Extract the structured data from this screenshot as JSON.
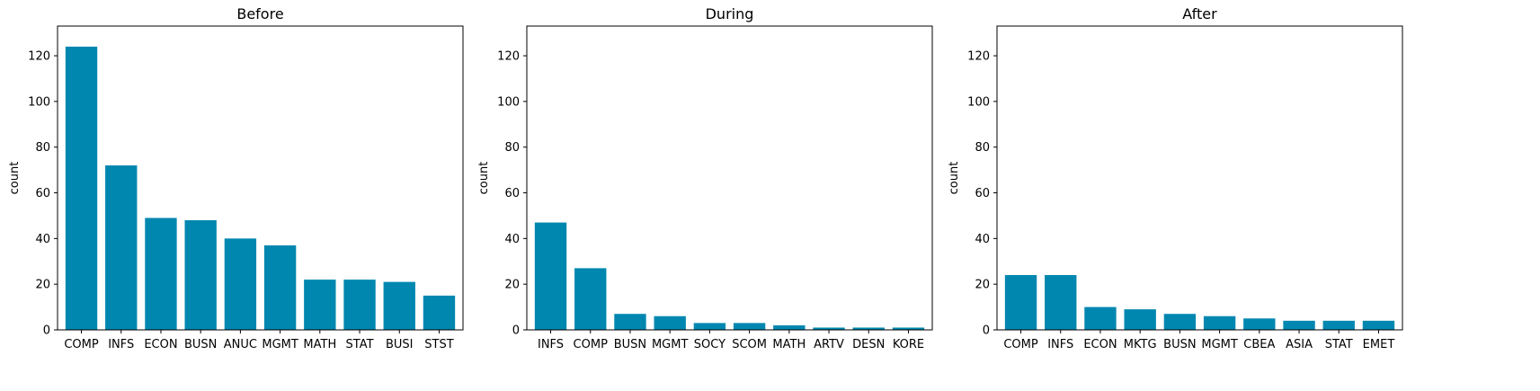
{
  "chart_data": [
    {
      "type": "bar",
      "title": "Before",
      "xlabel": "",
      "ylabel": "count",
      "ylim": [
        0,
        133
      ],
      "yticks": [
        0,
        20,
        40,
        60,
        80,
        100,
        120
      ],
      "categories": [
        "COMP",
        "INFS",
        "ECON",
        "BUSN",
        "ANUC",
        "MGMT",
        "MATH",
        "STAT",
        "BUSI",
        "STST"
      ],
      "values": [
        124,
        72,
        49,
        48,
        40,
        37,
        22,
        22,
        21,
        15
      ],
      "grid": false,
      "color": "#0087b0"
    },
    {
      "type": "bar",
      "title": "During",
      "xlabel": "",
      "ylabel": "count",
      "ylim": [
        0,
        133
      ],
      "yticks": [
        0,
        20,
        40,
        60,
        80,
        100,
        120
      ],
      "categories": [
        "INFS",
        "COMP",
        "BUSN",
        "MGMT",
        "SOCY",
        "SCOM",
        "MATH",
        "ARTV",
        "DESN",
        "KORE"
      ],
      "values": [
        47,
        27,
        7,
        6,
        3,
        3,
        2,
        1,
        1,
        1
      ],
      "grid": false,
      "color": "#0087b0"
    },
    {
      "type": "bar",
      "title": "After",
      "xlabel": "",
      "ylabel": "count",
      "ylim": [
        0,
        133
      ],
      "yticks": [
        0,
        20,
        40,
        60,
        80,
        100,
        120
      ],
      "categories": [
        "COMP",
        "INFS",
        "ECON",
        "MKTG",
        "BUSN",
        "MGMT",
        "CBEA",
        "ASIA",
        "STAT",
        "EMET"
      ],
      "values": [
        24,
        24,
        10,
        9,
        7,
        6,
        5,
        4,
        4,
        4
      ],
      "grid": false,
      "color": "#0087b0"
    }
  ]
}
